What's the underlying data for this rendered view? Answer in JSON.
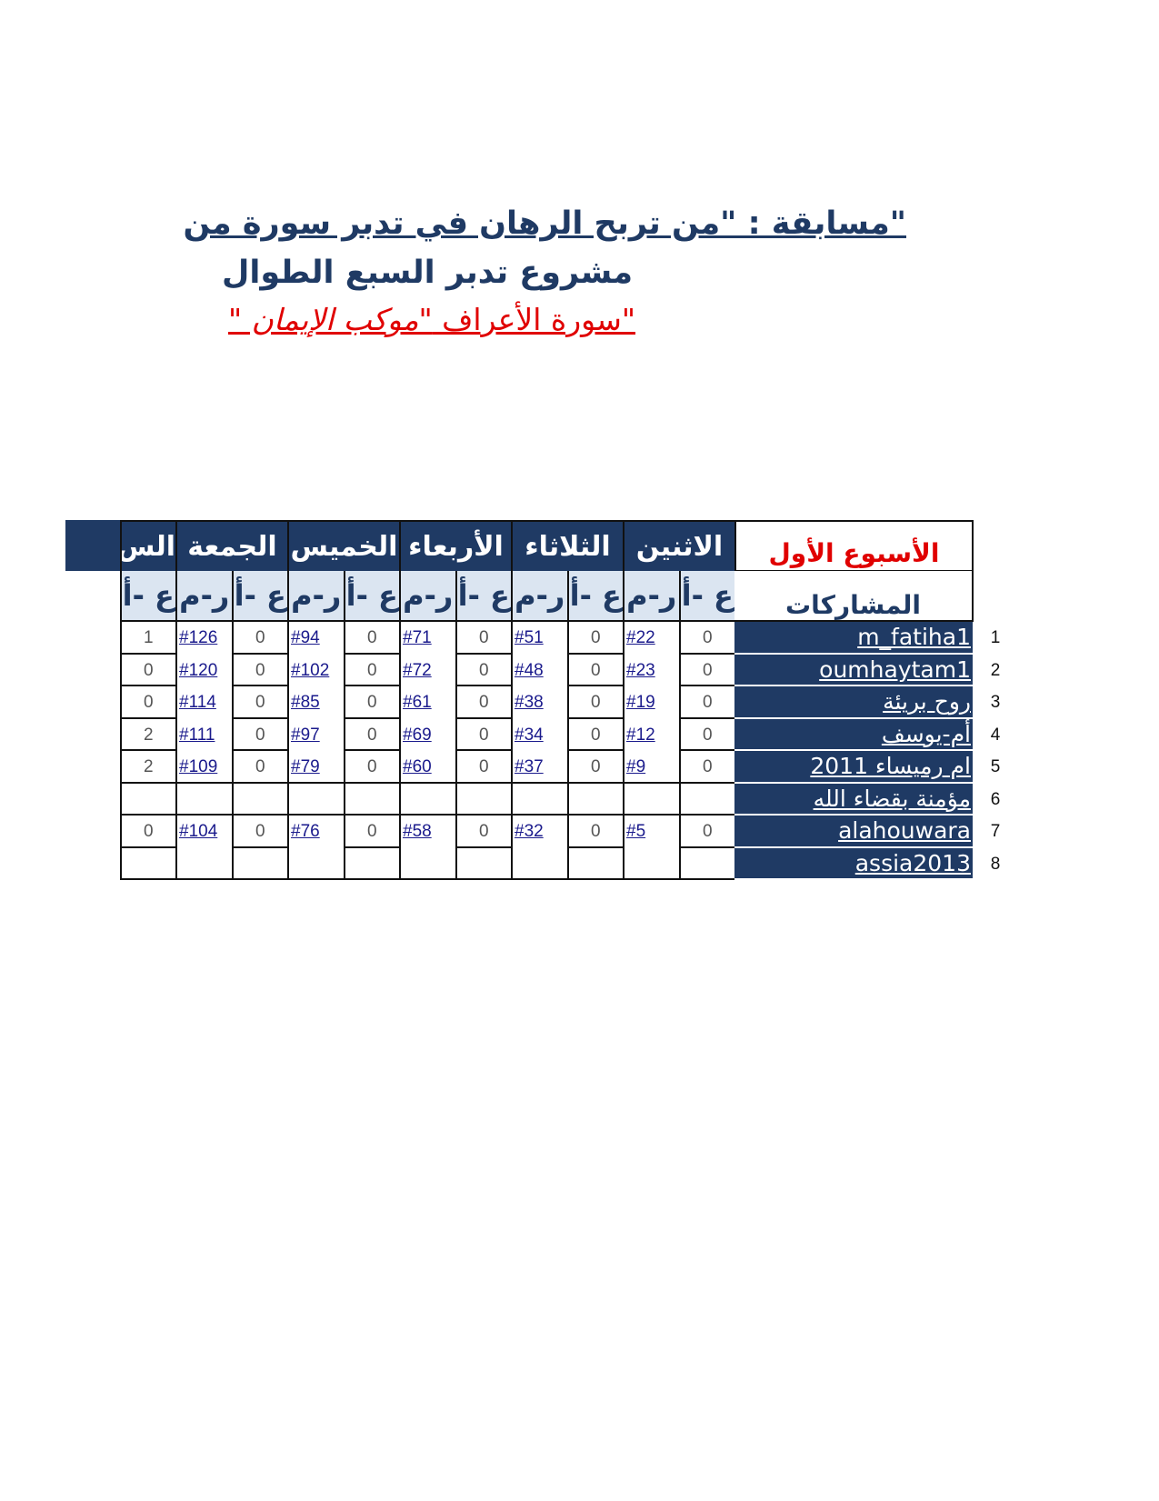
{
  "title": {
    "line1": "\"مسابقة : \"من تربح الرهان في تدبر سورة من",
    "line2": "مشروع تدبر السبع الطوال",
    "line3_a": "\"سورة الأعراف ",
    "line3_b": "\"موكب الإيمان \""
  },
  "table": {
    "week_label": "الأسبوع الأول",
    "participants_header": "المشاركات",
    "col_score": "ع -أ",
    "col_link": "ر-م",
    "days": [
      {
        "name": "الاثنين",
        "links": [
          "#22",
          "#23",
          "#19",
          "#12",
          "#9",
          "",
          "#5",
          ""
        ],
        "scores": [
          "0",
          "0",
          "0",
          "0",
          "0",
          "",
          "0",
          ""
        ]
      },
      {
        "name": "الثلاثاء",
        "links": [
          "#51",
          "#48",
          "#38",
          "#34",
          "#37",
          "",
          "#32",
          ""
        ],
        "scores": [
          "0",
          "0",
          "0",
          "0",
          "0",
          "",
          "0",
          ""
        ]
      },
      {
        "name": "الأربعاء",
        "links": [
          "#71",
          "#72",
          "#61",
          "#69",
          "#60",
          "",
          "#58",
          ""
        ],
        "scores": [
          "0",
          "0",
          "0",
          "0",
          "0",
          "",
          "0",
          ""
        ]
      },
      {
        "name": "الخميس",
        "links": [
          "#94",
          "#102",
          "#85",
          "#97",
          "#79",
          "",
          "#76",
          ""
        ],
        "scores": [
          "0",
          "0",
          "0",
          "0",
          "0",
          "",
          "0",
          ""
        ]
      },
      {
        "name": "الجمعة",
        "links": [
          "#126",
          "#120",
          "#114",
          "#111",
          "#109",
          "",
          "#104",
          ""
        ],
        "scores": [
          "0",
          "0",
          "0",
          "0",
          "0",
          "",
          "0",
          ""
        ]
      },
      {
        "name": "الس",
        "scores": [
          "1",
          "0",
          "0",
          "2",
          "2",
          "",
          "0",
          ""
        ]
      }
    ],
    "participants": [
      {
        "num": "1",
        "name": "m_fatiha1"
      },
      {
        "num": "2",
        "name": "oumhaytam1"
      },
      {
        "num": "3",
        "name": "روح بريئة"
      },
      {
        "num": "4",
        "name": "أم-يوسف"
      },
      {
        "num": "5",
        "name": "ام رميساء 2011"
      },
      {
        "num": "6",
        "name": "مؤمنة بقضاء الله"
      },
      {
        "num": "7",
        "name": "alahouwara"
      },
      {
        "num": "8",
        "name": "assia2013"
      }
    ]
  },
  "colors": {
    "navy": "#1f3a64",
    "red": "#e00000",
    "subheader": "#dbe5f1",
    "link": "#1a1a8c"
  }
}
